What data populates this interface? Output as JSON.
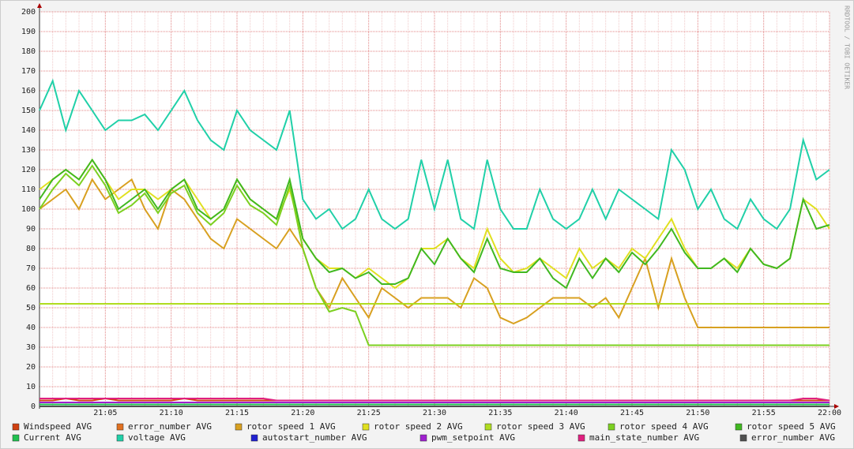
{
  "chart_data": {
    "type": "line",
    "side_label": "RRDTOOL / TOBI OETIKER",
    "x": [
      null,
      null,
      null,
      null,
      null,
      "21:05",
      null,
      null,
      null,
      null,
      "21:10",
      null,
      null,
      null,
      null,
      "21:15",
      null,
      null,
      null,
      null,
      "21:20",
      null,
      null,
      null,
      null,
      "21:25",
      null,
      null,
      null,
      null,
      "21:30",
      null,
      null,
      null,
      null,
      "21:35",
      null,
      null,
      null,
      null,
      "21:40",
      null,
      null,
      null,
      null,
      "21:45",
      null,
      null,
      null,
      null,
      "21:50",
      null,
      null,
      null,
      null,
      "21:55",
      null,
      null,
      null,
      null,
      "22:00"
    ],
    "ylim": [
      0,
      200
    ],
    "yticks": [
      0,
      10,
      20,
      30,
      40,
      50,
      60,
      70,
      80,
      90,
      100,
      110,
      120,
      130,
      140,
      150,
      160,
      170,
      180,
      190,
      200
    ],
    "grid": true,
    "series": [
      {
        "name": "Windspeed AVG",
        "color": "#d04010",
        "values": [
          3,
          3,
          4,
          3,
          3,
          4,
          3,
          3,
          3,
          3,
          3,
          4,
          3,
          3,
          3,
          3,
          3,
          3,
          3,
          3,
          3,
          3,
          3,
          3,
          3,
          3,
          3,
          3,
          3,
          3,
          3,
          3,
          3,
          3,
          3,
          3,
          3,
          3,
          3,
          3,
          3,
          3,
          3,
          3,
          3,
          3,
          3,
          3,
          3,
          3,
          3,
          3,
          3,
          3,
          3,
          3,
          3,
          3,
          3,
          3,
          3
        ]
      },
      {
        "name": "error_number AVG",
        "color": "#e07020",
        "values": [
          0,
          0,
          0,
          0,
          0,
          0,
          0,
          0,
          0,
          0,
          0,
          0,
          0,
          0,
          0,
          0,
          0,
          0,
          0,
          0,
          0,
          0,
          0,
          0,
          0,
          0,
          0,
          0,
          0,
          0,
          0,
          0,
          0,
          0,
          0,
          0,
          0,
          0,
          0,
          0,
          0,
          0,
          0,
          0,
          0,
          0,
          0,
          0,
          0,
          0,
          0,
          0,
          0,
          0,
          0,
          0,
          0,
          0,
          0,
          0,
          0
        ]
      },
      {
        "name": "rotor speed 1 AVG",
        "color": "#d8a020",
        "values": [
          100,
          105,
          110,
          100,
          115,
          105,
          110,
          115,
          100,
          90,
          110,
          105,
          95,
          85,
          80,
          95,
          90,
          85,
          80,
          90,
          80,
          60,
          50,
          65,
          55,
          45,
          60,
          55,
          50,
          55,
          55,
          55,
          50,
          65,
          60,
          45,
          42,
          45,
          50,
          55,
          55,
          55,
          50,
          55,
          45,
          60,
          75,
          50,
          75,
          55,
          40,
          40,
          40,
          40,
          40,
          40,
          40,
          40,
          40,
          40,
          40
        ]
      },
      {
        "name": "rotor speed 2 AVG",
        "color": "#e0e020",
        "values": [
          110,
          115,
          120,
          115,
          125,
          115,
          105,
          110,
          110,
          105,
          110,
          115,
          105,
          95,
          100,
          115,
          105,
          100,
          95,
          110,
          85,
          75,
          70,
          70,
          65,
          70,
          65,
          60,
          65,
          80,
          80,
          85,
          75,
          70,
          90,
          75,
          68,
          70,
          75,
          70,
          65,
          80,
          70,
          75,
          70,
          80,
          75,
          85,
          95,
          80,
          70,
          70,
          75,
          70,
          80,
          72,
          70,
          75,
          105,
          100,
          90
        ]
      },
      {
        "name": "rotor speed 3 AVG",
        "color": "#b0dc20",
        "values": [
          52,
          52,
          52,
          52,
          52,
          52,
          52,
          52,
          52,
          52,
          52,
          52,
          52,
          52,
          52,
          52,
          52,
          52,
          52,
          52,
          52,
          52,
          52,
          52,
          52,
          52,
          52,
          52,
          52,
          52,
          52,
          52,
          52,
          52,
          52,
          52,
          52,
          52,
          52,
          52,
          52,
          52,
          52,
          52,
          52,
          52,
          52,
          52,
          52,
          52,
          52,
          52,
          52,
          52,
          52,
          52,
          52,
          52,
          52,
          52,
          52
        ]
      },
      {
        "name": "rotor speed 4 AVG",
        "color": "#7cd020",
        "values": [
          100,
          110,
          118,
          112,
          122,
          112,
          98,
          102,
          108,
          98,
          108,
          112,
          98,
          92,
          98,
          112,
          102,
          98,
          92,
          112,
          80,
          60,
          48,
          50,
          48,
          31,
          31,
          31,
          31,
          31,
          31,
          31,
          31,
          31,
          31,
          31,
          31,
          31,
          31,
          31,
          31,
          31,
          31,
          31,
          31,
          31,
          31,
          31,
          31,
          31,
          31,
          31,
          31,
          31,
          31,
          31,
          31,
          31,
          31,
          31,
          31
        ]
      },
      {
        "name": "rotor speed 5 AVG",
        "color": "#40b820",
        "values": [
          105,
          115,
          120,
          115,
          125,
          115,
          100,
          105,
          110,
          100,
          110,
          115,
          100,
          95,
          100,
          115,
          105,
          100,
          95,
          115,
          85,
          75,
          68,
          70,
          65,
          68,
          62,
          62,
          65,
          80,
          72,
          85,
          75,
          68,
          85,
          70,
          68,
          68,
          75,
          65,
          60,
          75,
          65,
          75,
          68,
          78,
          72,
          80,
          90,
          78,
          70,
          70,
          75,
          68,
          80,
          72,
          70,
          75,
          105,
          90,
          92
        ]
      },
      {
        "name": "Current AVG",
        "color": "#20c050",
        "values": [
          1,
          1,
          1,
          1,
          1,
          1,
          1,
          1,
          1,
          1,
          1,
          1,
          1,
          1,
          1,
          1,
          1,
          1,
          1,
          1,
          1,
          1,
          1,
          1,
          1,
          1,
          1,
          1,
          1,
          1,
          1,
          1,
          1,
          1,
          1,
          1,
          1,
          1,
          1,
          1,
          1,
          1,
          1,
          1,
          1,
          1,
          1,
          1,
          1,
          1,
          1,
          1,
          1,
          1,
          1,
          1,
          1,
          1,
          1,
          1,
          1
        ]
      },
      {
        "name": "voltage AVG",
        "color": "#20d0a8",
        "values": [
          150,
          165,
          140,
          160,
          150,
          140,
          145,
          145,
          148,
          140,
          150,
          160,
          145,
          135,
          130,
          150,
          140,
          135,
          130,
          150,
          105,
          95,
          100,
          90,
          95,
          110,
          95,
          90,
          95,
          125,
          100,
          125,
          95,
          90,
          125,
          100,
          90,
          90,
          110,
          95,
          90,
          95,
          110,
          95,
          110,
          105,
          100,
          95,
          130,
          120,
          100,
          110,
          95,
          90,
          105,
          95,
          90,
          100,
          135,
          115,
          120
        ]
      },
      {
        "name": "autostart_number AVG",
        "color": "#2020d0",
        "values": [
          0,
          0,
          0,
          0,
          0,
          0,
          0,
          0,
          0,
          0,
          0,
          0,
          0,
          0,
          0,
          0,
          0,
          0,
          0,
          0,
          0,
          0,
          0,
          0,
          0,
          0,
          0,
          0,
          0,
          0,
          0,
          0,
          0,
          0,
          0,
          0,
          0,
          0,
          0,
          0,
          0,
          0,
          0,
          0,
          0,
          0,
          0,
          0,
          0,
          0,
          0,
          0,
          0,
          0,
          0,
          0,
          0,
          0,
          0,
          0,
          0
        ]
      },
      {
        "name": "pwm_setpoint AVG",
        "color": "#a020d0",
        "values": [
          2,
          2,
          2,
          2,
          2,
          2,
          2,
          2,
          2,
          2,
          2,
          2,
          2,
          2,
          2,
          2,
          2,
          2,
          2,
          2,
          2,
          2,
          2,
          2,
          2,
          2,
          2,
          2,
          2,
          2,
          2,
          2,
          2,
          2,
          2,
          2,
          2,
          2,
          2,
          2,
          2,
          2,
          2,
          2,
          2,
          2,
          2,
          2,
          2,
          2,
          2,
          2,
          2,
          2,
          2,
          2,
          2,
          2,
          2,
          2,
          2
        ]
      },
      {
        "name": "main_state_number AVG",
        "color": "#e02080",
        "values": [
          4,
          4,
          4,
          4,
          4,
          4,
          4,
          4,
          4,
          4,
          4,
          4,
          4,
          4,
          4,
          4,
          4,
          4,
          3,
          3,
          3,
          3,
          3,
          3,
          3,
          3,
          3,
          3,
          3,
          3,
          3,
          3,
          3,
          3,
          3,
          3,
          3,
          3,
          3,
          3,
          3,
          3,
          3,
          3,
          3,
          3,
          3,
          3,
          3,
          3,
          3,
          3,
          3,
          3,
          3,
          3,
          3,
          3,
          4,
          4,
          3
        ]
      },
      {
        "name": "error_number AVG",
        "color": "#505050",
        "values": [
          0,
          0,
          0,
          0,
          0,
          0,
          0,
          0,
          0,
          0,
          0,
          0,
          0,
          0,
          0,
          0,
          0,
          0,
          0,
          0,
          0,
          0,
          0,
          0,
          0,
          0,
          0,
          0,
          0,
          0,
          0,
          0,
          0,
          0,
          0,
          0,
          0,
          0,
          0,
          0,
          0,
          0,
          0,
          0,
          0,
          0,
          0,
          0,
          0,
          0,
          0,
          0,
          0,
          0,
          0,
          0,
          0,
          0,
          0,
          0,
          0
        ]
      }
    ]
  }
}
